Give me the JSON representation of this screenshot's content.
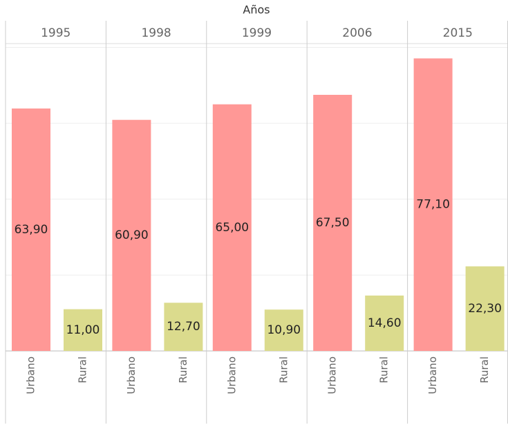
{
  "chart_data": {
    "type": "bar",
    "title": "Años",
    "groups": [
      "1995",
      "1998",
      "1999",
      "2006",
      "2015"
    ],
    "series": [
      {
        "name": "Urbano",
        "color": "#ff9896",
        "values": [
          63.9,
          60.9,
          65.0,
          67.5,
          77.1
        ],
        "value_labels": [
          "63,90",
          "60,90",
          "65,00",
          "67,50",
          "77,10"
        ]
      },
      {
        "name": "Rural",
        "color": "#dbdb8d",
        "values": [
          11.0,
          12.7,
          10.9,
          14.6,
          22.3
        ],
        "value_labels": [
          "11,00",
          "12,70",
          "10,90",
          "14,60",
          "22,30"
        ]
      }
    ],
    "ylim": [
      0,
      81
    ],
    "yticks": [
      0,
      20,
      40,
      60,
      80
    ],
    "grid": true
  }
}
